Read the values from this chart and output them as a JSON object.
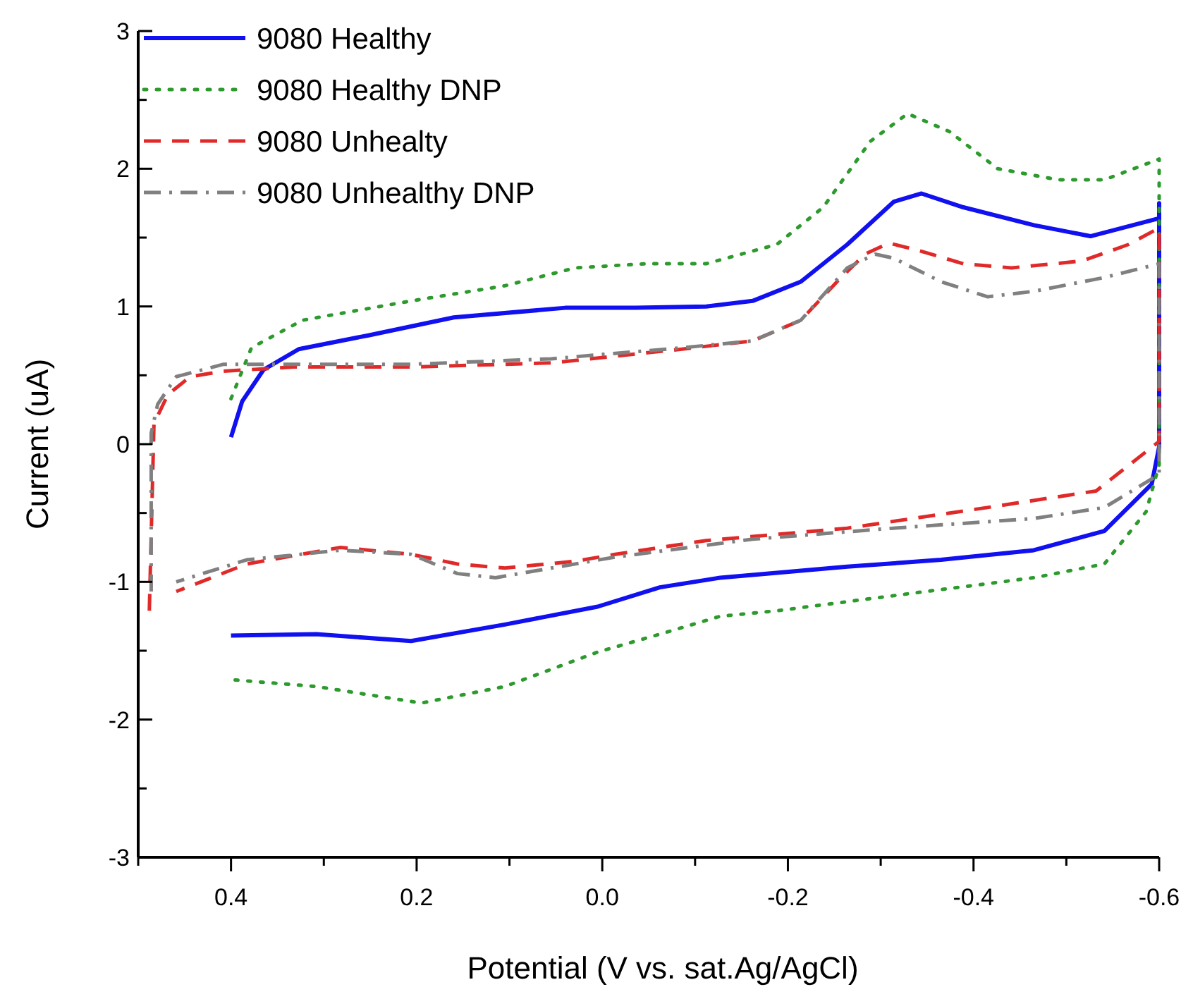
{
  "chart_data": {
    "type": "line",
    "xlabel": "Potential (V vs. sat.Ag/AgCl)",
    "ylabel": "Current (uA)",
    "xlim": [
      0.5,
      -0.6
    ],
    "ylim": [
      -3,
      3
    ],
    "xticks": [
      {
        "value": 0.5,
        "label": null
      },
      0.4,
      {
        "value": 0.3,
        "label": null
      },
      0.2,
      {
        "value": 0.1,
        "label": null
      },
      {
        "value": 0,
        "label": "0.0"
      },
      {
        "value": -0.1,
        "label": null
      },
      -0.2,
      {
        "value": -0.3,
        "label": null
      },
      -0.4,
      {
        "value": -0.5,
        "label": null
      },
      -0.6
    ],
    "yticks": [
      -3,
      {
        "value": -2.5,
        "label": null
      },
      -2,
      {
        "value": -1.5,
        "label": null
      },
      -1,
      {
        "value": -0.5,
        "label": null
      },
      0,
      {
        "value": 0.5,
        "label": null
      },
      1,
      {
        "value": 1.5,
        "label": null
      },
      2,
      {
        "value": 2.5,
        "label": null
      },
      3
    ],
    "legend": "top left",
    "grid": false,
    "marker": "none",
    "series": [
      {
        "name": "9080 Healthy",
        "color": "#1010f0",
        "line_style": "solid",
        "x": [
          0.4,
          0.388,
          0.365,
          0.327,
          0.252,
          0.16,
          0.04,
          -0.036,
          -0.112,
          -0.162,
          -0.214,
          -0.264,
          -0.314,
          -0.344,
          -0.389,
          -0.465,
          -0.526,
          -0.6,
          -0.6,
          -0.6,
          -0.592,
          -0.541,
          -0.465,
          -0.365,
          -0.264,
          -0.162,
          -0.127,
          -0.062,
          0.005,
          0.105,
          0.206,
          0.308,
          0.4
        ],
        "values": [
          0.05,
          0.31,
          0.54,
          0.69,
          0.79,
          0.92,
          0.99,
          0.99,
          1.0,
          1.04,
          1.18,
          1.45,
          1.76,
          1.82,
          1.72,
          1.59,
          1.51,
          1.64,
          1.75,
          -0.02,
          -0.29,
          -0.63,
          -0.77,
          -0.84,
          -0.89,
          -0.95,
          -0.97,
          -1.04,
          -1.18,
          -1.31,
          -1.43,
          -1.38,
          -1.39
        ]
      },
      {
        "name": "9080 Healthy DNP",
        "color": "#2e9a2e",
        "line_style": "dotted",
        "x": [
          0.4,
          0.378,
          0.323,
          0.206,
          0.105,
          0.029,
          -0.047,
          -0.112,
          -0.188,
          -0.238,
          -0.289,
          -0.329,
          -0.374,
          -0.426,
          -0.491,
          -0.541,
          -0.6,
          -0.6,
          -0.586,
          -0.541,
          -0.465,
          -0.314,
          -0.188,
          -0.127,
          -0.062,
          0.005,
          0.105,
          0.195,
          0.308,
          0.4
        ],
        "values": [
          0.33,
          0.7,
          0.9,
          1.04,
          1.15,
          1.28,
          1.31,
          1.31,
          1.45,
          1.72,
          2.2,
          2.4,
          2.27,
          2.0,
          1.92,
          1.92,
          2.07,
          -0.15,
          -0.49,
          -0.87,
          -0.97,
          -1.1,
          -1.21,
          -1.25,
          -1.38,
          -1.51,
          -1.76,
          -1.88,
          -1.76,
          -1.71
        ]
      },
      {
        "name": "9080 Unhealty",
        "color": "#e02a2a",
        "line_style": "dashed",
        "x": [
          0.488,
          0.483,
          0.468,
          0.444,
          0.408,
          0.332,
          0.206,
          0.055,
          -0.086,
          -0.162,
          -0.214,
          -0.253,
          -0.283,
          -0.309,
          -0.339,
          -0.389,
          -0.441,
          -0.517,
          -0.567,
          -0.6,
          -0.6,
          -0.532,
          -0.415,
          -0.264,
          -0.112,
          -0.014,
          0.029,
          0.105,
          0.156,
          0.206,
          0.282,
          0.383,
          0.459
        ],
        "values": [
          -1.21,
          0.15,
          0.36,
          0.49,
          0.53,
          0.56,
          0.56,
          0.59,
          0.69,
          0.75,
          0.9,
          1.18,
          1.38,
          1.46,
          1.41,
          1.31,
          1.28,
          1.33,
          1.45,
          1.57,
          0.02,
          -0.34,
          -0.46,
          -0.61,
          -0.7,
          -0.8,
          -0.85,
          -0.9,
          -0.87,
          -0.8,
          -0.75,
          -0.87,
          -1.07
        ]
      },
      {
        "name": "9080 Unhealthy DNP",
        "color": "#808080",
        "line_style": "dashdot",
        "x": [
          0.486,
          0.486,
          0.479,
          0.459,
          0.408,
          0.332,
          0.206,
          0.055,
          -0.086,
          -0.162,
          -0.214,
          -0.264,
          -0.294,
          -0.314,
          -0.365,
          -0.415,
          -0.465,
          -0.541,
          -0.6,
          -0.6,
          -0.541,
          -0.465,
          -0.314,
          -0.162,
          -0.014,
          0.055,
          0.115,
          0.156,
          0.206,
          0.282,
          0.383,
          0.459
        ],
        "values": [
          -1.07,
          0.08,
          0.29,
          0.49,
          0.58,
          0.58,
          0.58,
          0.62,
          0.7,
          0.75,
          0.9,
          1.28,
          1.38,
          1.35,
          1.18,
          1.07,
          1.11,
          1.21,
          1.31,
          -0.22,
          -0.46,
          -0.54,
          -0.61,
          -0.69,
          -0.82,
          -0.9,
          -0.97,
          -0.94,
          -0.8,
          -0.77,
          -0.84,
          -1.0
        ]
      }
    ]
  }
}
